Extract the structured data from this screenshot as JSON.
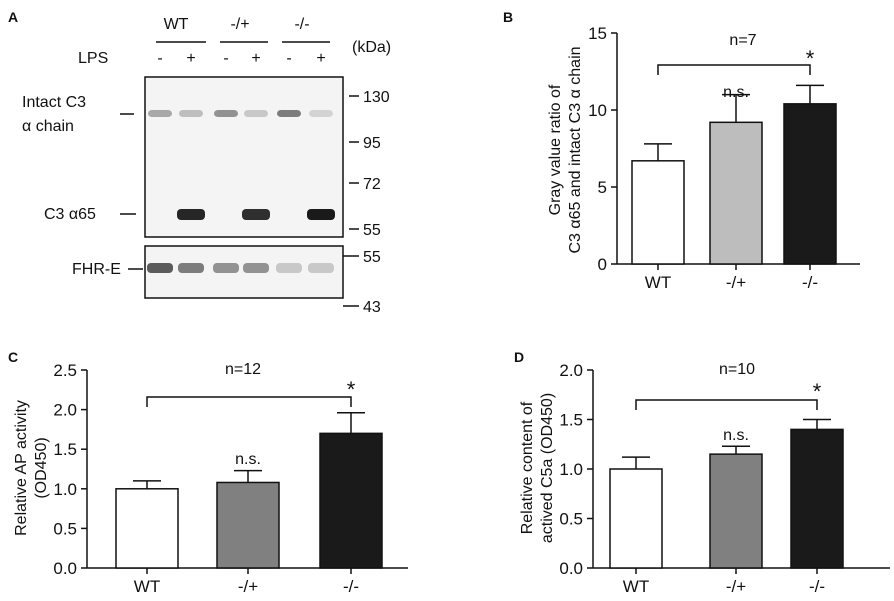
{
  "panel_a": {
    "letter": "A",
    "genotypes": [
      "WT",
      "-/+",
      "-/-"
    ],
    "lps_label": "LPS",
    "lps_states": [
      "-",
      "+",
      "-",
      "+",
      "-",
      "+"
    ],
    "unit_label": "(kDa)",
    "band_labels": {
      "intact_line1": "Intact C3",
      "intact_line2": "α chain",
      "c3a65": "C3 α65",
      "fhre": "FHR-E"
    },
    "top_blot_markers": [
      "130",
      "95",
      "72",
      "55"
    ],
    "bottom_blot_markers": [
      "55",
      "43"
    ],
    "band_intensity": {
      "intact_c3": [
        0.35,
        0.25,
        0.45,
        0.2,
        0.55,
        0.15
      ],
      "c3a65": [
        0.0,
        0.95,
        0.0,
        0.9,
        0.0,
        1.0
      ],
      "fhre": [
        0.7,
        0.55,
        0.45,
        0.45,
        0.2,
        0.2
      ]
    },
    "colors": {
      "band": "#1a1a1a",
      "blot_bg": "#f4f4f4"
    }
  },
  "chart_data": [
    {
      "panel": "B",
      "type": "bar",
      "n_label": "n=7",
      "ylabel_lines": [
        "Gray value ratio of",
        "C3 α65 and intact C3 α chain"
      ],
      "categories": [
        "WT",
        "-/+",
        "-/-"
      ],
      "values": [
        6.7,
        9.2,
        10.4
      ],
      "errors": [
        1.1,
        1.8,
        1.2
      ],
      "ylim": [
        0,
        15
      ],
      "yticks": [
        "0",
        "5",
        "10",
        "15"
      ],
      "bar_colors": [
        "#ffffff",
        "#bdbdbd",
        "#1a1a1a"
      ],
      "annotations": {
        "middle": "n.s.",
        "comparison": "*"
      }
    },
    {
      "panel": "C",
      "type": "bar",
      "n_label": "n=12",
      "ylabel_lines": [
        "Relative AP activity",
        "(OD450)"
      ],
      "categories": [
        "WT",
        "-/+",
        "-/-"
      ],
      "values": [
        1.0,
        1.08,
        1.7
      ],
      "errors": [
        0.1,
        0.15,
        0.26
      ],
      "ylim": [
        0,
        2.5
      ],
      "yticks": [
        "0.0",
        "0.5",
        "1.0",
        "1.5",
        "2.0",
        "2.5"
      ],
      "bar_colors": [
        "#ffffff",
        "#808080",
        "#1a1a1a"
      ],
      "annotations": {
        "middle": "n.s.",
        "comparison": "*"
      }
    },
    {
      "panel": "D",
      "type": "bar",
      "n_label": "n=10",
      "ylabel_lines": [
        "Relative content of",
        "actived C5a (OD450)"
      ],
      "categories": [
        "WT",
        "-/+",
        "-/-"
      ],
      "values": [
        1.0,
        1.15,
        1.4
      ],
      "errors": [
        0.12,
        0.08,
        0.1
      ],
      "ylim": [
        0,
        2.0
      ],
      "yticks": [
        "0.0",
        "0.5",
        "1.0",
        "1.5",
        "2.0"
      ],
      "bar_colors": [
        "#ffffff",
        "#808080",
        "#1a1a1a"
      ],
      "annotations": {
        "middle": "n.s.",
        "comparison": "*"
      }
    }
  ]
}
